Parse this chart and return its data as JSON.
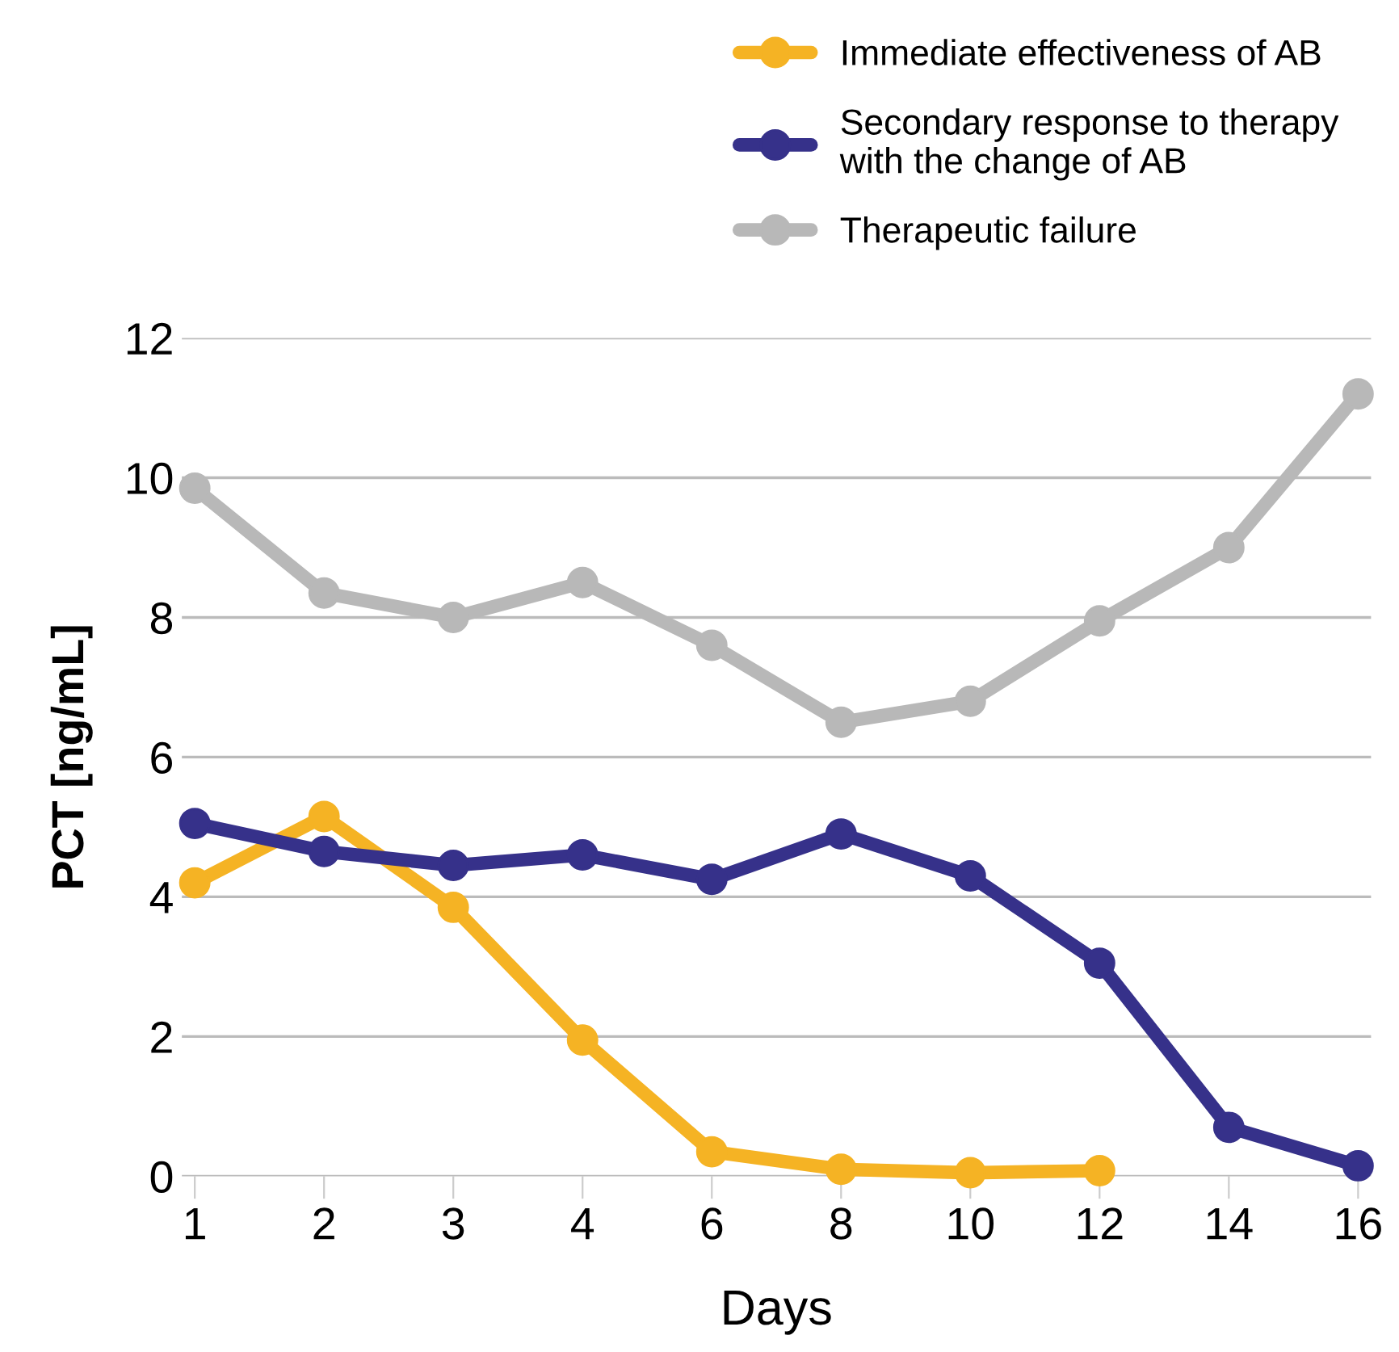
{
  "chart_data": {
    "type": "line",
    "xlabel": "Days",
    "ylabel": "PCT [ng/mL]",
    "categories": [
      "1",
      "2",
      "3",
      "4",
      "6",
      "8",
      "10",
      "12",
      "14",
      "16"
    ],
    "series": [
      {
        "name": "Immediate effectiveness of AB",
        "color": "#f5b324",
        "values": [
          4.2,
          5.15,
          3.85,
          1.95,
          0.35,
          0.1,
          0.05,
          0.08,
          null,
          null
        ]
      },
      {
        "name": "Secondary response to therapy\nwith the change of AB",
        "color": "#36318a",
        "values": [
          5.05,
          4.65,
          4.45,
          4.6,
          4.25,
          4.9,
          4.3,
          3.05,
          0.7,
          0.15
        ]
      },
      {
        "name": "Therapeutic failure",
        "color": "#b8b8b8",
        "values": [
          9.85,
          8.35,
          8.0,
          8.5,
          7.6,
          6.5,
          6.8,
          7.95,
          9.0,
          11.2
        ]
      }
    ],
    "ylim": [
      0,
      12
    ],
    "yticks": [
      0,
      2,
      4,
      6,
      8,
      10,
      12
    ],
    "grid": "y",
    "legend": "top right",
    "marker": "circle",
    "line_style": "solid"
  }
}
